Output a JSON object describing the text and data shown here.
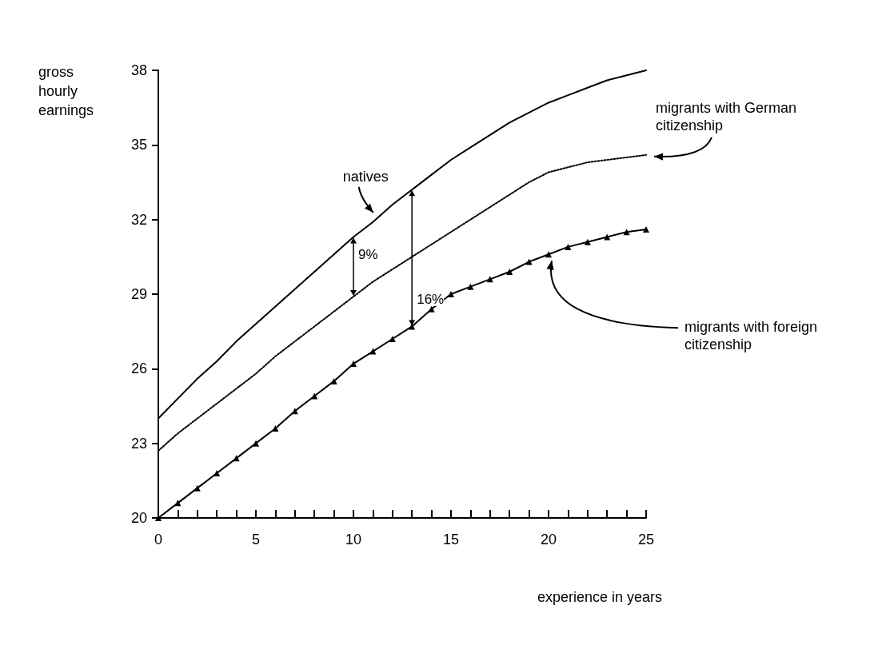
{
  "chart_data": {
    "type": "line",
    "ylabel": "gross\nhourly\nearnings",
    "xlabel": "experience in years",
    "x": [
      0,
      1,
      2,
      3,
      4,
      5,
      6,
      7,
      8,
      9,
      10,
      11,
      12,
      13,
      14,
      15,
      16,
      17,
      18,
      19,
      20,
      21,
      22,
      23,
      24,
      25
    ],
    "series": [
      {
        "name": "natives",
        "color": "#000000",
        "marker": "none",
        "line_style": "solid",
        "values": [
          24.0,
          24.8,
          25.6,
          26.3,
          27.1,
          27.8,
          28.5,
          29.2,
          29.9,
          30.6,
          31.3,
          31.9,
          32.6,
          33.2,
          33.8,
          34.4,
          34.9,
          35.4,
          35.9,
          36.3,
          36.7,
          37.0,
          37.3,
          37.6,
          37.8,
          38.0
        ]
      },
      {
        "name": "migrants with German\ncitizenship",
        "color": "#000000",
        "marker": "none",
        "line_style": "dotted",
        "values": [
          22.7,
          23.4,
          24.0,
          24.6,
          25.2,
          25.8,
          26.5,
          27.1,
          27.7,
          28.3,
          28.9,
          29.5,
          30.0,
          30.5,
          31.0,
          31.5,
          32.0,
          32.5,
          33.0,
          33.5,
          33.9,
          34.1,
          34.3,
          34.4,
          34.5,
          34.6
        ]
      },
      {
        "name": "migrants with foreign\ncitizenship",
        "color": "#000000",
        "marker": "triangle",
        "line_style": "solid",
        "values": [
          20.0,
          20.6,
          21.2,
          21.8,
          22.4,
          23.0,
          23.6,
          24.3,
          24.9,
          25.5,
          26.2,
          26.7,
          27.2,
          27.7,
          28.4,
          29.0,
          29.3,
          29.6,
          29.9,
          30.3,
          30.6,
          30.9,
          31.1,
          31.3,
          31.5,
          31.6
        ]
      }
    ],
    "annotations": [
      "9%",
      "16%"
    ],
    "xlim": [
      0,
      25
    ],
    "xticks": [
      0,
      {
        "value": 1,
        "label": null
      },
      {
        "value": 2,
        "label": null
      },
      {
        "value": 3,
        "label": null
      },
      {
        "value": 4,
        "label": null
      },
      5,
      {
        "value": 6,
        "label": null
      },
      {
        "value": 7,
        "label": null
      },
      {
        "value": 8,
        "label": null
      },
      {
        "value": 9,
        "label": null
      },
      10,
      {
        "value": 11,
        "label": null
      },
      {
        "value": 12,
        "label": null
      },
      {
        "value": 13,
        "label": null
      },
      {
        "value": 14,
        "label": null
      },
      15,
      {
        "value": 16,
        "label": null
      },
      {
        "value": 17,
        "label": null
      },
      {
        "value": 18,
        "label": null
      },
      {
        "value": 19,
        "label": null
      },
      20,
      {
        "value": 21,
        "label": null
      },
      {
        "value": 22,
        "label": null
      },
      {
        "value": 23,
        "label": null
      },
      {
        "value": 24,
        "label": null
      },
      25
    ],
    "ylim": [
      20,
      38
    ],
    "yticks": [
      20,
      23,
      26,
      29,
      32,
      35,
      38
    ],
    "grid": false,
    "legend": false
  }
}
